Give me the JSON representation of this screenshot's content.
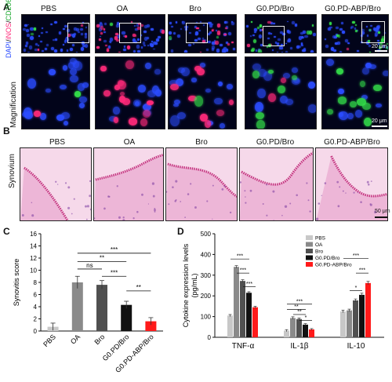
{
  "panel_a": {
    "letter": "A",
    "stain_label": {
      "dapi": "DAPI",
      "sep1": "/",
      "inos": "iNOS",
      "sep2": "/",
      "cd206": "CD206"
    },
    "magnification_label": "Magnification",
    "columns": [
      "PBS",
      "OA",
      "Bro",
      "G0.PD/Bro",
      "G0.PD-ABP/Bro"
    ],
    "scale_top": "20 μm",
    "scale_bottom": "20 μm",
    "colors": {
      "dapi": "#2b4cff",
      "inos": "#ff2a7a",
      "cd206": "#34e04a"
    }
  },
  "panel_b": {
    "letter": "B",
    "row_label": "Synovium",
    "columns": [
      "PBS",
      "OA",
      "Bro",
      "G0.PD/Bro",
      "G0.PD-ABP/Bro"
    ],
    "scale": "50 μm"
  },
  "panel_c": {
    "letter": "C",
    "chart_data": {
      "type": "bar",
      "ylabel": "Synovitis score",
      "categories": [
        "PBS",
        "OA",
        "Bro",
        "G0.PD/Bro",
        "G0.PD-ABP/Bro"
      ],
      "values": [
        0.7,
        8.0,
        7.6,
        4.3,
        1.6
      ],
      "errors": [
        0.6,
        1.0,
        0.7,
        0.6,
        0.6
      ],
      "colors": [
        "#c8c8c8",
        "#8a8a8a",
        "#505050",
        "#111111",
        "#ff1a1a"
      ],
      "ylim": [
        0,
        16
      ],
      "yticks": [
        0,
        2,
        4,
        6,
        8,
        10,
        12,
        14,
        16
      ],
      "significance": [
        {
          "from": "OA",
          "to": "Bro",
          "label": "ns"
        },
        {
          "from": "OA",
          "to": "G0.PD/Bro",
          "label": "**"
        },
        {
          "from": "OA",
          "to": "G0.PD-ABP/Bro",
          "label": "***"
        },
        {
          "from": "Bro",
          "to": "G0.PD/Bro",
          "label": "***"
        },
        {
          "from": "G0.PD/Bro",
          "to": "G0.PD-ABP/Bro",
          "label": "**"
        }
      ]
    }
  },
  "panel_d": {
    "letter": "D",
    "chart_data": {
      "type": "bar",
      "ylabel": "Cytokine expression levels (pg/mL)",
      "categories": [
        "TNF-α",
        "IL-1β",
        "IL-10"
      ],
      "series": [
        {
          "name": "PBS",
          "color": "#c8c8c8",
          "values": [
            105,
            32,
            125
          ],
          "errors": [
            5,
            5,
            6
          ]
        },
        {
          "name": "OA",
          "color": "#8a8a8a",
          "values": [
            340,
            93,
            130
          ],
          "errors": [
            6,
            6,
            6
          ]
        },
        {
          "name": "Bro",
          "color": "#505050",
          "values": [
            272,
            88,
            178
          ],
          "errors": [
            6,
            5,
            7
          ]
        },
        {
          "name": "G0.PD/Bro",
          "color": "#111111",
          "values": [
            215,
            61,
            205
          ],
          "errors": [
            5,
            5,
            8
          ]
        },
        {
          "name": "G0.PD-ABP/Bro",
          "color": "#ff1a1a",
          "values": [
            145,
            38,
            262
          ],
          "errors": [
            5,
            4,
            8
          ]
        }
      ],
      "ylim": [
        0,
        500
      ],
      "yticks": [
        0,
        100,
        200,
        300,
        400,
        500
      ],
      "legend_position": "top-right",
      "significance": [
        "***",
        "***",
        "***",
        "***",
        "**",
        "**",
        "*",
        "***",
        "*",
        "***"
      ]
    }
  }
}
